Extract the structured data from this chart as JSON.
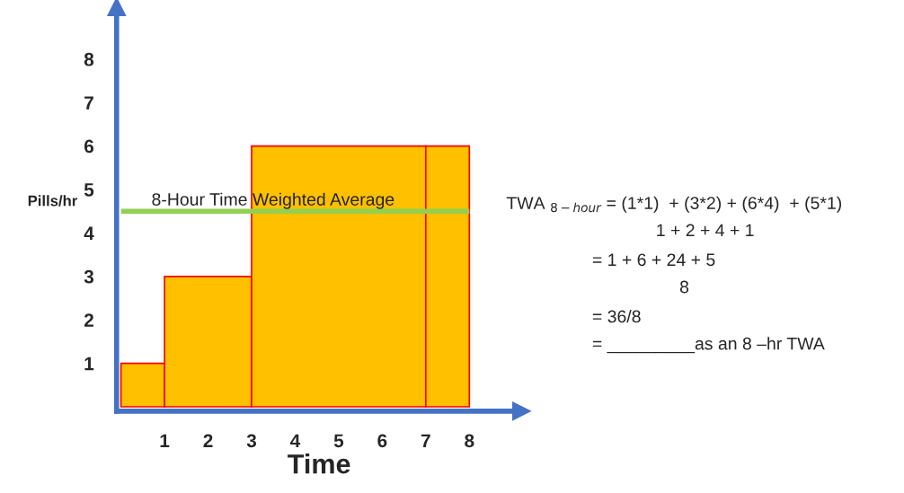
{
  "chart_data": {
    "type": "histogram",
    "xlabel": "Time",
    "ylabel": "Pills/hr",
    "bins": [
      0,
      1,
      3,
      7,
      8
    ],
    "values": [
      1,
      3,
      6,
      6
    ],
    "color": "#ffc000",
    "xlim": [
      -0.1,
      9.2
    ],
    "ylim": [
      -0.1,
      9.2
    ],
    "xticks": [
      1,
      2,
      3,
      4,
      5,
      6,
      7,
      8
    ],
    "yticks": [
      1,
      2,
      3,
      4,
      5,
      6,
      7,
      8
    ],
    "ref_lines": [
      {
        "axis": "y",
        "value": 4.5,
        "label": "8-Hour Time Weighted Average",
        "color": "#92d050"
      }
    ],
    "annotations": [
      "TWA $_{8−hour}$ = (1*1)  + (3*2) + (6*4)  + (5*1)",
      "1 + 2 + 4 + 1",
      "= 1 + 6 + 24 + 5",
      "8",
      "= 36/8",
      "= _________as an 8 –hr TWA"
    ],
    "grid": false
  }
}
